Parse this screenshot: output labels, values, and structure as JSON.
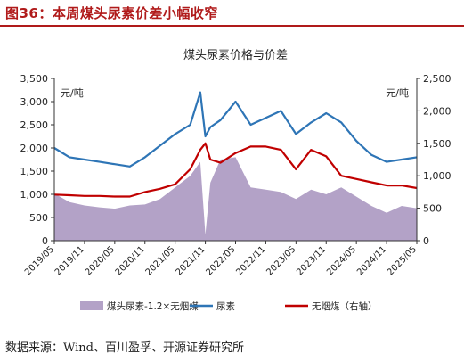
{
  "figure": {
    "label": "图36：本周煤头尿素价差小幅收窄",
    "source": "数据来源：Wind、百川盈孚、开源证券研究所"
  },
  "chart_data": {
    "type": "line",
    "title": "煤头尿素价格与价差",
    "left_unit": "元/吨",
    "right_unit": "元/吨",
    "y_left": {
      "range": [
        0,
        3500
      ],
      "ticks": [
        "0",
        "500",
        "1,000",
        "1,500",
        "2,000",
        "2,500",
        "3,000",
        "3,500"
      ]
    },
    "y_right": {
      "range": [
        0,
        2500
      ],
      "ticks": [
        "0",
        "500",
        "1,000",
        "1,500",
        "2,000",
        "2,500"
      ]
    },
    "x_ticks": [
      "2019/05",
      "2019/11",
      "2020/05",
      "2020/11",
      "2021/05",
      "2021/11",
      "2022/05",
      "2022/11",
      "2023/05",
      "2023/11",
      "2024/05",
      "2024/11",
      "2025/05"
    ],
    "x": [
      "2019/05",
      "2019/08",
      "2019/11",
      "2020/02",
      "2020/05",
      "2020/08",
      "2020/11",
      "2021/02",
      "2021/05",
      "2021/08",
      "2021/10",
      "2021/11",
      "2021/12",
      "2022/02",
      "2022/05",
      "2022/08",
      "2022/11",
      "2023/02",
      "2023/05",
      "2023/08",
      "2023/11",
      "2024/02",
      "2024/05",
      "2024/08",
      "2024/11",
      "2025/02",
      "2025/05"
    ],
    "series": [
      {
        "name": "煤头尿素-1.2×无烟煤",
        "axis": "left",
        "style": "area",
        "color": "#b3a2c7",
        "values": [
          1020,
          830,
          760,
          720,
          690,
          760,
          780,
          900,
          1150,
          1400,
          1700,
          130,
          1250,
          1750,
          1800,
          1150,
          1100,
          1050,
          900,
          1100,
          1000,
          1150,
          950,
          750,
          600,
          750,
          700
        ]
      },
      {
        "name": "尿素",
        "axis": "left",
        "style": "line",
        "color": "#2e75b6",
        "values": [
          2000,
          1800,
          1750,
          1700,
          1650,
          1600,
          1800,
          2050,
          2300,
          2500,
          3200,
          2250,
          2450,
          2600,
          3000,
          2500,
          2650,
          2800,
          2300,
          2550,
          2750,
          2550,
          2150,
          1850,
          1700,
          1750,
          1800
        ]
      },
      {
        "name": "无烟煤（右轴）",
        "axis": "right",
        "style": "line",
        "color": "#c00000",
        "values": [
          710,
          700,
          690,
          690,
          680,
          680,
          750,
          800,
          870,
          1100,
          1400,
          1500,
          1250,
          1200,
          1350,
          1450,
          1450,
          1400,
          1100,
          1400,
          1300,
          1000,
          950,
          900,
          850,
          850,
          810
        ]
      }
    ],
    "legend_position": "bottom",
    "grid": false
  }
}
